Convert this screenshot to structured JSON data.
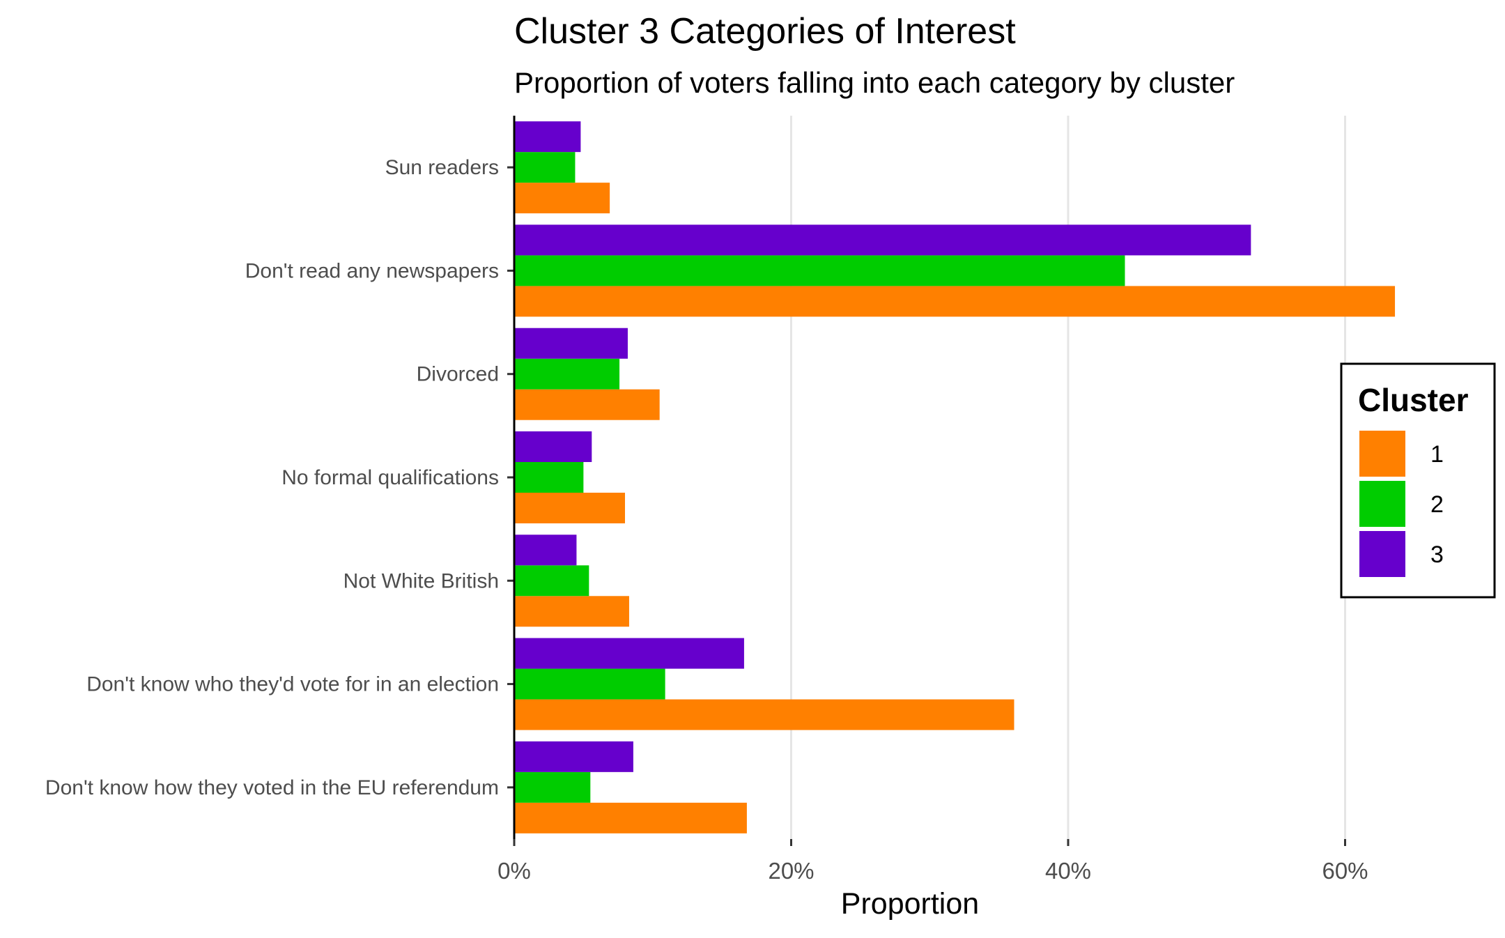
{
  "chart_data": {
    "type": "bar",
    "orientation": "horizontal",
    "title": "Cluster 3 Categories of Interest",
    "subtitle": "Proportion of voters falling into each category by cluster",
    "xlabel": "Proportion",
    "ylabel": "",
    "xlim": [
      0,
      0.64
    ],
    "x_ticks": [
      {
        "value": 0,
        "label": "0%"
      },
      {
        "value": 0.2,
        "label": "20%"
      },
      {
        "value": 0.4,
        "label": "40%"
      },
      {
        "value": 0.6,
        "label": "60%"
      }
    ],
    "grid": "vertical major lines",
    "categories": [
      "Sun readers",
      "Don't read any newspapers",
      "Divorced",
      "No formal qualifications",
      "Not White British",
      "Don't know who they'd vote for in an election",
      "Don't know how they voted in the EU referendum"
    ],
    "series": [
      {
        "name": "1",
        "color": "#FF8000",
        "values": [
          0.069,
          0.636,
          0.105,
          0.08,
          0.083,
          0.361,
          0.168
        ]
      },
      {
        "name": "2",
        "color": "#00CC00",
        "values": [
          0.044,
          0.441,
          0.076,
          0.05,
          0.054,
          0.109,
          0.055
        ]
      },
      {
        "name": "3",
        "color": "#6600CC",
        "values": [
          0.048,
          0.532,
          0.082,
          0.056,
          0.045,
          0.166,
          0.086
        ]
      }
    ],
    "legend": {
      "title": "Cluster",
      "position": "right"
    }
  }
}
